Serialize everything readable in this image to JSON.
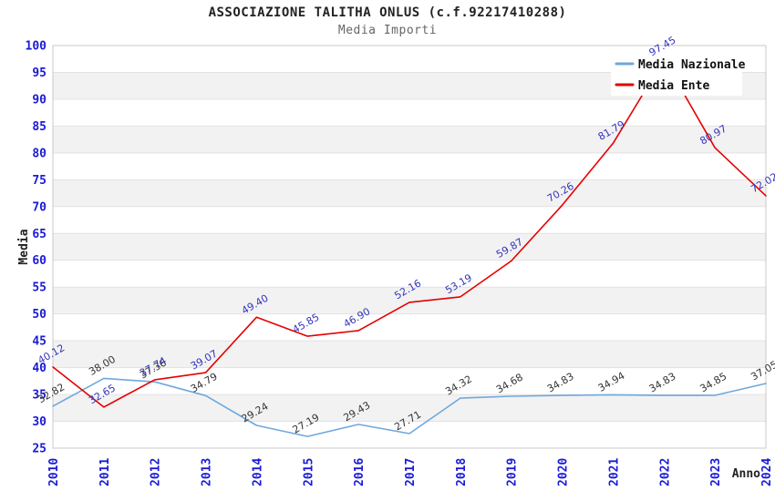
{
  "header": {
    "title": "ASSOCIAZIONE TALITHA ONLUS (c.f.92217410288)",
    "subtitle": "Media Importi"
  },
  "legend": {
    "items": [
      {
        "label": "Media Nazionale",
        "color": "#6fa8dc"
      },
      {
        "label": "Media Ente",
        "color": "#e60000"
      }
    ]
  },
  "chart_data": {
    "type": "line",
    "title": "ASSOCIAZIONE TALITHA ONLUS (c.f.92217410288)",
    "subtitle": "Media Importi",
    "xlabel": "Anno",
    "ylabel": "Media",
    "ylim": [
      25,
      100
    ],
    "ytick_step": 5,
    "grid": "horizontal-bands-alternating",
    "legend_position": "top-right",
    "categories": [
      "2010",
      "2011",
      "2012",
      "2013",
      "2014",
      "2015",
      "2016",
      "2017",
      "2018",
      "2019",
      "2020",
      "2021",
      "2022",
      "2023",
      "2024"
    ],
    "series": [
      {
        "name": "Media Nazionale",
        "color": "#6fa8dc",
        "label_color": "#333333",
        "values": [
          32.82,
          38.0,
          37.36,
          34.79,
          29.24,
          27.19,
          29.43,
          27.71,
          34.32,
          34.68,
          34.83,
          34.94,
          34.83,
          34.85,
          37.05
        ]
      },
      {
        "name": "Media Ente",
        "color": "#e60000",
        "label_color": "#3333bb",
        "values": [
          40.12,
          32.65,
          37.74,
          39.07,
          49.4,
          45.85,
          46.9,
          52.16,
          53.19,
          59.87,
          70.26,
          81.79,
          97.45,
          80.97,
          72.02
        ]
      }
    ],
    "colors": {
      "tick_label": "#1a1ad6",
      "grid_line": "#e2e2e2",
      "band_gray": "#f2f2f2",
      "plot_border": "#c8c8c8",
      "axis_title": "#222222"
    }
  }
}
